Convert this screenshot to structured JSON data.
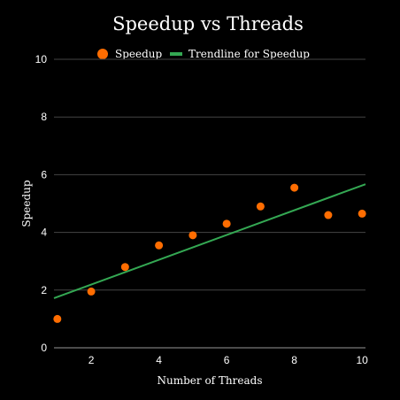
{
  "chart_data": {
    "type": "scatter",
    "title": "Speedup vs Threads",
    "xlabel": "Number of Threads",
    "ylabel": "Speedup",
    "xlim": [
      0.9,
      10.1
    ],
    "ylim": [
      0,
      10
    ],
    "x_ticks": [
      2,
      4,
      6,
      8,
      10
    ],
    "y_ticks": [
      0,
      2,
      4,
      6,
      8,
      10
    ],
    "grid": "horizontal",
    "legend_position": "top",
    "series": [
      {
        "name": "Speedup",
        "kind": "scatter",
        "color": "#ff6d01",
        "x": [
          1,
          2,
          3,
          4,
          5,
          6,
          7,
          8,
          9,
          10
        ],
        "y": [
          1.0,
          1.95,
          2.8,
          3.55,
          3.9,
          4.3,
          4.9,
          5.55,
          4.6,
          4.65
        ]
      },
      {
        "name": "Trendline for Speedup",
        "kind": "trendline",
        "color": "#34a853",
        "x": [
          0.9,
          10.1
        ],
        "y": [
          1.72,
          5.67
        ]
      }
    ]
  },
  "colors": {
    "background": "#000000",
    "grid": "#444444",
    "axis": "#999999",
    "text": "#ffffff"
  }
}
